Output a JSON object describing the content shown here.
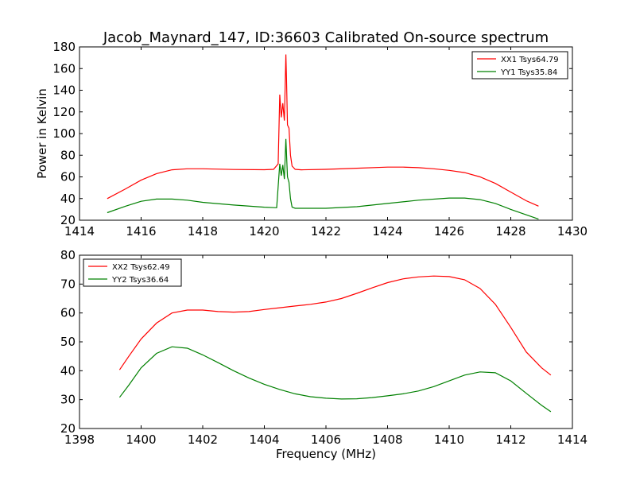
{
  "figure": {
    "title": "Jacob_Maynard_147, ID:36603 Calibrated On-source spectrum"
  },
  "chart_data": [
    {
      "type": "line",
      "title": "Jacob_Maynard_147, ID:36603 Calibrated On-source spectrum",
      "xlabel": "",
      "ylabel": "Power in Kelvin",
      "xlim": [
        1414,
        1430
      ],
      "ylim": [
        20,
        180
      ],
      "xticks": [
        "1414",
        "1416",
        "1418",
        "1420",
        "1422",
        "1424",
        "1426",
        "1428",
        "1430"
      ],
      "yticks": [
        "20",
        "40",
        "60",
        "80",
        "100",
        "120",
        "140",
        "160",
        "180"
      ],
      "grid": false,
      "legend_position": "top-right",
      "series": [
        {
          "name": "XX1 Tsys64.79",
          "color": "#ff0000",
          "x": [
            1414.9,
            1415.5,
            1416.0,
            1416.5,
            1417.0,
            1417.5,
            1418.0,
            1419.0,
            1420.0,
            1420.3,
            1420.45,
            1420.5,
            1420.55,
            1420.6,
            1420.65,
            1420.7,
            1420.72,
            1420.75,
            1420.8,
            1420.85,
            1420.9,
            1421.0,
            1421.2,
            1422.0,
            1423.0,
            1424.0,
            1424.5,
            1425.0,
            1425.5,
            1426.0,
            1426.5,
            1427.0,
            1427.5,
            1428.0,
            1428.5,
            1428.9
          ],
          "y": [
            40,
            49,
            57,
            63,
            66.5,
            67.5,
            67.5,
            66.8,
            66.6,
            67,
            72,
            136,
            115,
            128,
            112,
            173,
            150,
            108,
            105,
            80,
            70,
            67,
            66.5,
            67,
            68,
            69,
            69,
            68.5,
            67.5,
            66,
            64,
            60,
            54,
            46,
            38,
            33
          ]
        },
        {
          "name": "YY1 Tsys35.84",
          "color": "#008000",
          "x": [
            1414.9,
            1415.5,
            1416.0,
            1416.5,
            1417.0,
            1417.5,
            1418.0,
            1419.0,
            1420.0,
            1420.4,
            1420.5,
            1420.55,
            1420.6,
            1420.65,
            1420.7,
            1420.75,
            1420.8,
            1420.85,
            1420.9,
            1421.0,
            1422.0,
            1423.0,
            1424.0,
            1425.0,
            1426.0,
            1426.5,
            1427.0,
            1427.5,
            1428.0,
            1428.5,
            1428.9
          ],
          "y": [
            27,
            33,
            37.5,
            39.5,
            39.5,
            38.5,
            36.5,
            34,
            32,
            31.5,
            72,
            61,
            71,
            58,
            95,
            60,
            55,
            40,
            32,
            31,
            31,
            32.5,
            35.5,
            38.5,
            40.5,
            40.5,
            39,
            35.5,
            30,
            25,
            21
          ]
        }
      ]
    },
    {
      "type": "line",
      "title": "",
      "xlabel": "Frequency (MHz)",
      "ylabel": "",
      "xlim": [
        1398,
        1414
      ],
      "ylim": [
        20,
        80
      ],
      "xticks": [
        "1398",
        "1400",
        "1402",
        "1404",
        "1406",
        "1408",
        "1410",
        "1412",
        "1414"
      ],
      "yticks": [
        "20",
        "30",
        "40",
        "50",
        "60",
        "70",
        "80"
      ],
      "grid": false,
      "legend_position": "top-left",
      "series": [
        {
          "name": "XX2 Tsys62.49",
          "color": "#ff0000",
          "x": [
            1399.3,
            1399.6,
            1400.0,
            1400.5,
            1401.0,
            1401.5,
            1402.0,
            1402.5,
            1403.0,
            1403.5,
            1404.0,
            1404.5,
            1405.0,
            1405.5,
            1406.0,
            1406.5,
            1407.0,
            1407.5,
            1408.0,
            1408.5,
            1409.0,
            1409.5,
            1410.0,
            1410.5,
            1411.0,
            1411.5,
            1412.0,
            1412.5,
            1413.0,
            1413.3
          ],
          "y": [
            40.3,
            45,
            51,
            56.5,
            60,
            61,
            61,
            60.5,
            60.3,
            60.5,
            61.2,
            61.8,
            62.4,
            63,
            63.8,
            65,
            66.8,
            68.7,
            70.5,
            71.8,
            72.5,
            72.8,
            72.6,
            71.5,
            68.5,
            63,
            55,
            46.5,
            41,
            38.5
          ]
        },
        {
          "name": "YY2 Tsys36.64",
          "color": "#008000",
          "x": [
            1399.3,
            1399.6,
            1400.0,
            1400.5,
            1401.0,
            1401.5,
            1402.0,
            1402.5,
            1403.0,
            1403.5,
            1404.0,
            1404.5,
            1405.0,
            1405.5,
            1406.0,
            1406.5,
            1407.0,
            1407.5,
            1408.0,
            1408.5,
            1409.0,
            1409.5,
            1410.0,
            1410.5,
            1411.0,
            1411.5,
            1412.0,
            1412.5,
            1413.0,
            1413.3
          ],
          "y": [
            30.8,
            35,
            41,
            46,
            48.3,
            47.8,
            45.5,
            42.8,
            40,
            37.5,
            35.3,
            33.5,
            32,
            31,
            30.5,
            30.2,
            30.3,
            30.7,
            31.3,
            32,
            33,
            34.5,
            36.5,
            38.5,
            39.6,
            39.3,
            36.5,
            32.2,
            28,
            25.8
          ]
        }
      ]
    }
  ]
}
